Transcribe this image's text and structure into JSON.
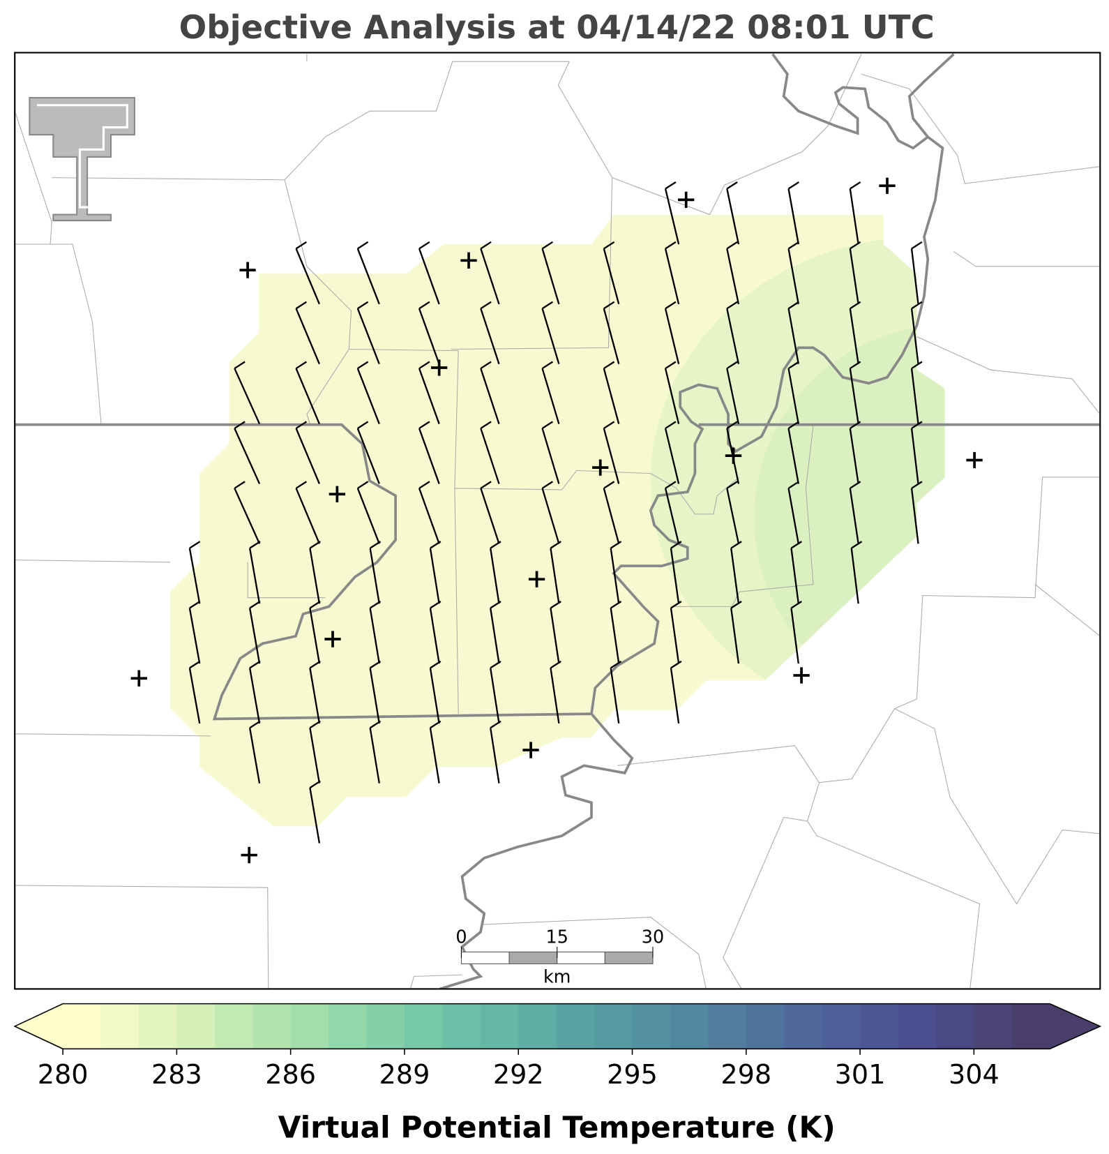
{
  "title": "Objective Analysis at 04/14/22 08:01 UTC",
  "colorbar": {
    "label": "Virtual Potential Temperature (K)",
    "range": [
      280,
      306
    ],
    "step": 1,
    "ticks": [
      280,
      283,
      286,
      289,
      292,
      295,
      298,
      301,
      304
    ],
    "color_stops": [
      "#ffffcc",
      "#d4efb8",
      "#9cdcab",
      "#70c6a8",
      "#5aa9a4",
      "#548ca0",
      "#4f6b9c",
      "#4b4f91",
      "#4a3f6b"
    ]
  },
  "scale_bar": {
    "ticks": [
      0,
      15,
      30
    ],
    "unit": "km"
  }
}
